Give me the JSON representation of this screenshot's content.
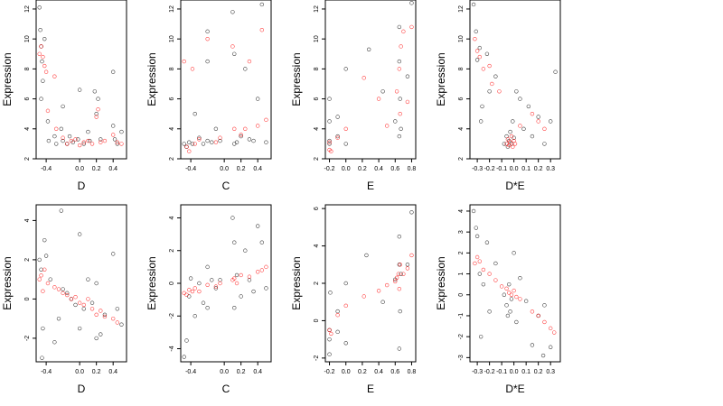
{
  "colors": {
    "series_a": "#000000",
    "series_b": "#ff0000",
    "background": "#ffffff"
  },
  "chart_data": [
    {
      "type": "scatter",
      "xlabel": "D",
      "ylabel": "Expression",
      "xlim": [
        -0.52,
        0.56
      ],
      "ylim": [
        2,
        12.6
      ],
      "xticks": [
        -0.4,
        0.0,
        0.2,
        0.4
      ],
      "xtick_labels": [
        "-0.4",
        "0.0",
        "0.2",
        "0.4"
      ],
      "yticks": [
        2,
        4,
        6,
        8,
        10,
        12
      ],
      "ytick_labels": [
        "2",
        "4",
        "6",
        "8",
        "10",
        "12"
      ],
      "grid": false,
      "series": [
        {
          "color": "#000000",
          "x": [
            -0.48,
            -0.47,
            -0.46,
            -0.45,
            -0.44,
            -0.42,
            -0.38,
            -0.37,
            -0.3,
            -0.28,
            -0.22,
            -0.2,
            -0.15,
            -0.12,
            -0.08,
            -0.02,
            0.0,
            0.05,
            0.1,
            0.12,
            0.18,
            0.2,
            0.25,
            0.4,
            0.42,
            0.45,
            0.5,
            -0.46,
            -0.2,
            0.22,
            0.4
          ],
          "y": [
            12.1,
            10.6,
            9.5,
            8.5,
            7.2,
            10.0,
            4.5,
            3.2,
            3.5,
            3.0,
            4.0,
            3.2,
            3.0,
            3.5,
            3.1,
            3.3,
            6.6,
            3.0,
            3.8,
            3.2,
            6.5,
            5.0,
            3.3,
            4.2,
            3.3,
            3.0,
            3.8,
            6.0,
            5.5,
            6.0,
            7.8
          ]
        },
        {
          "color": "#ff0000",
          "x": [
            -0.48,
            -0.46,
            -0.44,
            -0.42,
            -0.4,
            -0.38,
            -0.3,
            -0.28,
            -0.2,
            -0.15,
            -0.1,
            -0.05,
            0.0,
            0.05,
            0.1,
            0.15,
            0.2,
            0.22,
            0.25,
            0.3,
            0.4,
            0.45,
            0.5
          ],
          "y": [
            9.0,
            9.5,
            8.8,
            8.2,
            7.8,
            5.2,
            7.5,
            4.0,
            3.4,
            3.0,
            3.2,
            3.3,
            2.9,
            3.1,
            3.2,
            3.0,
            4.8,
            5.3,
            3.1,
            3.2,
            3.6,
            3.1,
            3.0
          ]
        }
      ]
    },
    {
      "type": "scatter",
      "xlabel": "C",
      "ylabel": "Expression",
      "xlim": [
        -0.52,
        0.56
      ],
      "ylim": [
        2,
        12.6
      ],
      "xticks": [
        -0.4,
        0.0,
        0.2,
        0.4
      ],
      "xtick_labels": [
        "-0.4",
        "0.0",
        "0.2",
        "0.4"
      ],
      "yticks": [
        2,
        4,
        6,
        8,
        10,
        12
      ],
      "ytick_labels": [
        "2",
        "4",
        "6",
        "8",
        "10",
        "12"
      ],
      "grid": false,
      "series": [
        {
          "color": "#000000",
          "x": [
            -0.48,
            -0.45,
            -0.42,
            -0.38,
            -0.35,
            -0.3,
            -0.25,
            -0.2,
            -0.2,
            -0.15,
            -0.1,
            -0.05,
            0.1,
            0.12,
            0.15,
            0.2,
            0.25,
            0.3,
            0.35,
            0.4,
            0.45,
            0.5,
            0.12,
            -0.2
          ],
          "y": [
            3.0,
            2.8,
            3.1,
            3.0,
            5.0,
            3.4,
            3.0,
            3.2,
            8.5,
            3.1,
            4.0,
            3.2,
            11.8,
            9.0,
            3.1,
            3.5,
            8.0,
            3.3,
            3.2,
            6.0,
            12.3,
            3.1,
            3.0,
            10.5
          ]
        },
        {
          "color": "#ff0000",
          "x": [
            -0.48,
            -0.45,
            -0.42,
            -0.38,
            -0.35,
            -0.3,
            -0.2,
            -0.1,
            -0.05,
            0.1,
            0.12,
            0.2,
            0.25,
            0.3,
            0.4,
            0.45,
            0.5
          ],
          "y": [
            8.5,
            2.8,
            2.5,
            8.0,
            3.0,
            3.3,
            10.0,
            3.1,
            3.4,
            9.5,
            4.0,
            3.6,
            4.0,
            8.5,
            4.2,
            10.6,
            4.6
          ]
        }
      ]
    },
    {
      "type": "scatter",
      "xlabel": "E",
      "ylabel": "Expression",
      "xlim": [
        -0.25,
        0.85
      ],
      "ylim": [
        2,
        12.6
      ],
      "xticks": [
        -0.2,
        0.0,
        0.2,
        0.4,
        0.6,
        0.8
      ],
      "xtick_labels": [
        "-0.2",
        "0.0",
        "0.2",
        "0.4",
        "0.6",
        "0.8"
      ],
      "yticks": [
        2,
        4,
        6,
        8,
        10,
        12
      ],
      "ytick_labels": [
        "2",
        "4",
        "6",
        "8",
        "10",
        "12"
      ],
      "grid": false,
      "series": [
        {
          "color": "#000000",
          "x": [
            -0.2,
            -0.2,
            -0.2,
            -0.2,
            -0.1,
            -0.1,
            0.0,
            0.0,
            0.28,
            0.45,
            0.6,
            0.65,
            0.65,
            0.65,
            0.66,
            0.67,
            0.75,
            0.8
          ],
          "y": [
            3.0,
            4.5,
            6.0,
            3.2,
            3.5,
            4.8,
            8.0,
            3.0,
            9.3,
            6.5,
            4.5,
            3.5,
            8.5,
            10.8,
            6.0,
            4.0,
            7.5,
            12.4
          ]
        },
        {
          "color": "#ff0000",
          "x": [
            -0.2,
            -0.2,
            -0.18,
            -0.1,
            0.0,
            0.22,
            0.4,
            0.5,
            0.62,
            0.65,
            0.66,
            0.67,
            0.7,
            0.75,
            0.8
          ],
          "y": [
            2.6,
            3.1,
            2.5,
            3.4,
            4.0,
            7.4,
            6.0,
            4.2,
            6.5,
            8.0,
            5.0,
            9.5,
            10.5,
            5.8,
            10.8
          ]
        }
      ]
    },
    {
      "type": "scatter",
      "xlabel": "D*E",
      "ylabel": "Expression",
      "xlim": [
        -0.36,
        0.38
      ],
      "ylim": [
        2,
        12.6
      ],
      "xticks": [
        -0.3,
        -0.2,
        -0.1,
        0.0,
        0.1,
        0.2,
        0.3
      ],
      "xtick_labels": [
        "-0.3",
        "-0.2",
        "-0.1",
        "0.0",
        "0.1",
        "0.2",
        "0.3"
      ],
      "yticks": [
        2,
        4,
        6,
        8,
        10,
        12
      ],
      "ytick_labels": [
        "2",
        "4",
        "6",
        "8",
        "10",
        "12"
      ],
      "grid": false,
      "series": [
        {
          "color": "#000000",
          "x": [
            -0.33,
            -0.31,
            -0.3,
            -0.28,
            -0.26,
            -0.22,
            -0.2,
            -0.15,
            -0.08,
            -0.06,
            -0.05,
            -0.04,
            -0.03,
            -0.02,
            -0.01,
            0.0,
            0.02,
            0.05,
            0.08,
            0.12,
            0.15,
            0.2,
            0.25,
            0.3,
            0.34,
            -0.27
          ],
          "y": [
            12.3,
            10.5,
            8.6,
            9.4,
            5.5,
            9.0,
            6.5,
            7.5,
            3.0,
            3.5,
            2.8,
            3.2,
            3.8,
            3.0,
            4.5,
            3.4,
            6.5,
            6.0,
            4.0,
            5.5,
            3.5,
            4.8,
            3.0,
            4.5,
            7.8,
            4.5
          ]
        },
        {
          "color": "#ff0000",
          "x": [
            -0.32,
            -0.3,
            -0.28,
            -0.25,
            -0.2,
            -0.18,
            -0.12,
            -0.06,
            -0.05,
            -0.04,
            -0.03,
            -0.02,
            -0.01,
            0.0,
            0.01,
            0.05,
            0.15,
            0.2,
            0.25
          ],
          "y": [
            10.0,
            9.2,
            8.8,
            8.0,
            8.2,
            7.0,
            6.5,
            3.0,
            3.3,
            2.9,
            3.1,
            3.5,
            2.8,
            3.2,
            3.0,
            4.2,
            5.0,
            4.5,
            4.0
          ]
        }
      ]
    },
    {
      "type": "scatter",
      "xlabel": "D",
      "ylabel": "Expression",
      "xlim": [
        -0.52,
        0.56
      ],
      "ylim": [
        -3.2,
        4.8
      ],
      "xticks": [
        -0.4,
        0.0,
        0.2,
        0.4
      ],
      "xtick_labels": [
        "-0.4",
        "0.0",
        "0.2",
        "0.4"
      ],
      "yticks": [
        -2,
        0,
        2,
        4
      ],
      "ytick_labels": [
        "-2",
        "0",
        "2",
        "4"
      ],
      "grid": false,
      "series": [
        {
          "color": "#000000",
          "x": [
            -0.48,
            -0.46,
            -0.45,
            -0.44,
            -0.42,
            -0.4,
            -0.35,
            -0.3,
            -0.22,
            -0.2,
            -0.15,
            -0.1,
            -0.05,
            0.0,
            0.05,
            0.1,
            0.15,
            0.2,
            0.25,
            0.3,
            0.4,
            0.45,
            0.5,
            -0.25,
            0.0,
            0.2
          ],
          "y": [
            2.0,
            1.5,
            -3.0,
            -1.5,
            3.0,
            2.2,
            1.0,
            -2.2,
            4.5,
            0.5,
            0.3,
            0.0,
            -0.3,
            3.3,
            -0.5,
            1.0,
            -0.2,
            -2.0,
            -1.8,
            -0.8,
            2.3,
            -0.5,
            -1.3,
            -1.0,
            -1.5,
            0.8
          ]
        },
        {
          "color": "#ff0000",
          "x": [
            -0.48,
            -0.46,
            -0.44,
            -0.42,
            -0.38,
            -0.3,
            -0.25,
            -0.2,
            -0.15,
            -0.1,
            -0.05,
            0.0,
            0.05,
            0.1,
            0.15,
            0.2,
            0.25,
            0.3,
            0.4,
            0.45
          ],
          "y": [
            1.0,
            1.2,
            0.4,
            1.5,
            0.8,
            0.6,
            0.5,
            0.3,
            0.2,
            0.0,
            0.1,
            -0.2,
            -0.3,
            0.0,
            -0.5,
            -0.8,
            -0.6,
            -0.9,
            -1.0,
            -1.2
          ]
        }
      ]
    },
    {
      "type": "scatter",
      "xlabel": "C",
      "ylabel": "Expression",
      "xlim": [
        -0.52,
        0.56
      ],
      "ylim": [
        -4.8,
        4.8
      ],
      "xticks": [
        -0.4,
        0.0,
        0.2,
        0.4
      ],
      "xtick_labels": [
        "-0.4",
        "0.0",
        "0.2",
        "0.4"
      ],
      "yticks": [
        -4,
        -2,
        0,
        2,
        4
      ],
      "ytick_labels": [
        "-4",
        "-2",
        "0",
        "2",
        "4"
      ],
      "grid": false,
      "series": [
        {
          "color": "#000000",
          "x": [
            -0.48,
            -0.45,
            -0.42,
            -0.4,
            -0.35,
            -0.3,
            -0.25,
            -0.2,
            -0.15,
            -0.1,
            -0.05,
            0.1,
            0.12,
            0.15,
            0.2,
            0.25,
            0.3,
            0.35,
            0.4,
            0.45,
            0.5,
            -0.2,
            0.12
          ],
          "y": [
            -4.5,
            -3.5,
            -0.8,
            0.3,
            -2.0,
            0.0,
            -1.2,
            1.0,
            0.2,
            -0.3,
            0.2,
            4.0,
            -1.5,
            0.5,
            -0.8,
            2.0,
            0.2,
            -0.5,
            3.5,
            2.5,
            -0.3,
            -1.5,
            2.5
          ]
        },
        {
          "color": "#ff0000",
          "x": [
            -0.48,
            -0.45,
            -0.42,
            -0.38,
            -0.35,
            -0.3,
            -0.2,
            -0.1,
            -0.05,
            0.1,
            0.12,
            0.15,
            0.2,
            0.3,
            0.4,
            0.45,
            0.5
          ],
          "y": [
            -0.6,
            -0.7,
            -0.4,
            -0.5,
            -0.3,
            -0.5,
            -0.1,
            -0.2,
            0.0,
            0.2,
            0.3,
            0.0,
            0.5,
            0.4,
            0.7,
            0.8,
            1.0
          ]
        }
      ]
    },
    {
      "type": "scatter",
      "xlabel": "E",
      "ylabel": "Expression",
      "xlim": [
        -0.25,
        0.85
      ],
      "ylim": [
        -2.2,
        6.2
      ],
      "xticks": [
        -0.2,
        0.0,
        0.2,
        0.4,
        0.6,
        0.8
      ],
      "xtick_labels": [
        "-0.2",
        "0.0",
        "0.2",
        "0.4",
        "0.6",
        "0.8"
      ],
      "yticks": [
        -2,
        0,
        2,
        4,
        6
      ],
      "ytick_labels": [
        "-2",
        "0",
        "2",
        "4",
        "6"
      ],
      "grid": false,
      "series": [
        {
          "color": "#000000",
          "x": [
            -0.2,
            -0.2,
            -0.2,
            -0.19,
            -0.1,
            -0.1,
            0.0,
            0.0,
            0.25,
            0.45,
            0.6,
            0.65,
            0.65,
            0.65,
            0.66,
            0.67,
            0.75,
            0.8
          ],
          "y": [
            -1.8,
            -1.0,
            -0.5,
            1.5,
            -0.6,
            0.5,
            2.0,
            -1.2,
            3.5,
            1.0,
            2.2,
            -1.5,
            3.0,
            4.5,
            0.5,
            2.5,
            3.0,
            5.8
          ]
        },
        {
          "color": "#ff0000",
          "x": [
            -0.2,
            -0.18,
            -0.1,
            0.0,
            0.22,
            0.4,
            0.5,
            0.6,
            0.62,
            0.64,
            0.65,
            0.66,
            0.7,
            0.75,
            0.8
          ],
          "y": [
            -0.5,
            -0.7,
            0.3,
            0.8,
            1.3,
            1.6,
            1.9,
            2.1,
            2.3,
            2.5,
            1.7,
            3.0,
            2.5,
            2.8,
            3.5
          ]
        }
      ]
    },
    {
      "type": "scatter",
      "xlabel": "D*E",
      "ylabel": "Expression",
      "xlim": [
        -0.36,
        0.38
      ],
      "ylim": [
        -3.2,
        4.3
      ],
      "xticks": [
        -0.3,
        -0.2,
        -0.1,
        0.0,
        0.1,
        0.2,
        0.3
      ],
      "xtick_labels": [
        "-0.3",
        "-0.2",
        "-0.1",
        "0.0",
        "0.1",
        "0.2",
        "0.3"
      ],
      "yticks": [
        -3,
        -2,
        -1,
        0,
        1,
        2,
        3,
        4
      ],
      "ytick_labels": [
        "-3",
        "-2",
        "-1",
        "0",
        "1",
        "2",
        "3",
        "4"
      ],
      "grid": false,
      "series": [
        {
          "color": "#000000",
          "x": [
            -0.33,
            -0.31,
            -0.3,
            -0.28,
            -0.25,
            -0.22,
            -0.2,
            -0.15,
            -0.08,
            -0.06,
            -0.05,
            -0.04,
            -0.03,
            -0.02,
            0.0,
            0.02,
            0.05,
            0.1,
            0.15,
            0.2,
            0.25,
            0.3,
            -0.27,
            0.24
          ],
          "y": [
            4.0,
            3.2,
            2.8,
            1.0,
            0.5,
            2.5,
            -0.8,
            1.5,
            0.0,
            -0.5,
            -1.0,
            0.5,
            -0.8,
            -0.2,
            2.0,
            -1.3,
            0.8,
            -0.3,
            -2.4,
            -1.0,
            -0.5,
            -2.5,
            -2.0,
            -2.9
          ]
        },
        {
          "color": "#ff0000",
          "x": [
            -0.32,
            -0.3,
            -0.28,
            -0.25,
            -0.2,
            -0.15,
            -0.1,
            -0.06,
            -0.04,
            -0.02,
            0.0,
            0.02,
            0.05,
            0.15,
            0.2,
            0.25,
            0.3,
            0.33
          ],
          "y": [
            1.5,
            1.8,
            1.6,
            1.2,
            1.0,
            0.7,
            0.4,
            0.3,
            0.1,
            0.0,
            0.2,
            -0.1,
            -0.2,
            -0.8,
            -1.0,
            -1.3,
            -1.6,
            -1.8
          ]
        }
      ]
    }
  ]
}
